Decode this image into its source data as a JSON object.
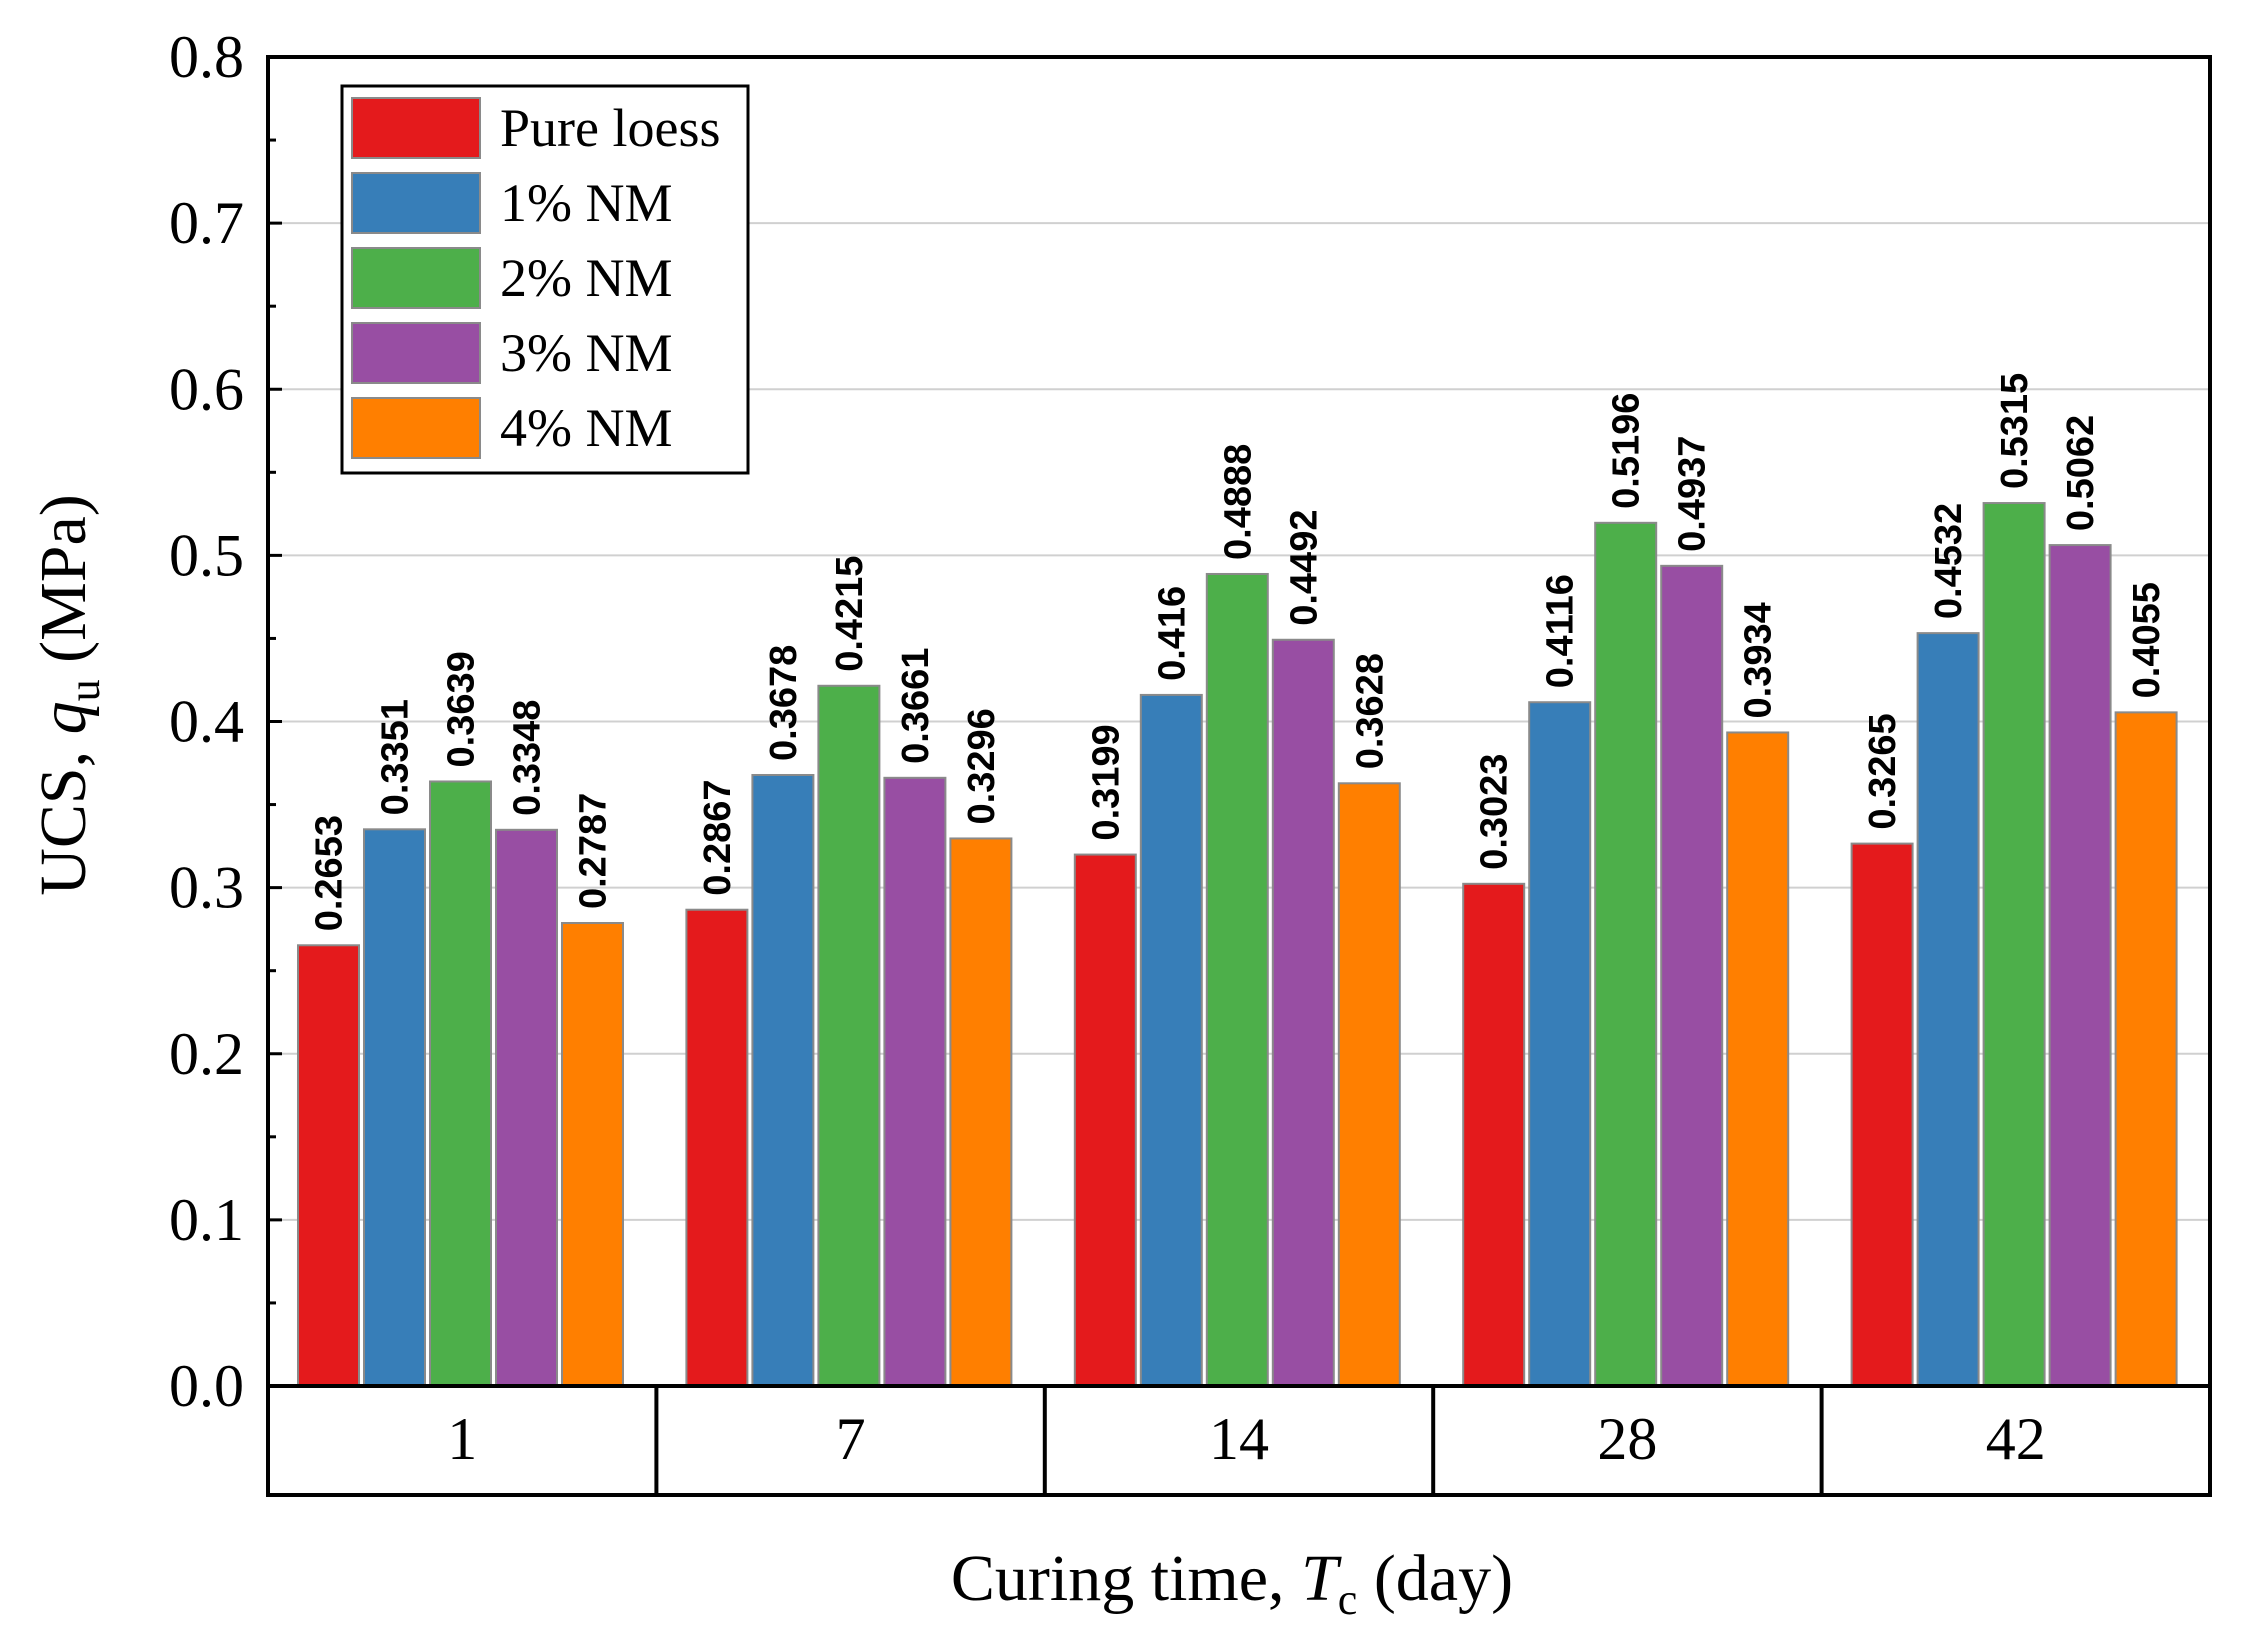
{
  "chart_data": {
    "type": "bar",
    "title": "",
    "xlabel": {
      "prefix": "Curing time, ",
      "var": "T",
      "sub": "c",
      "suffix": " (day)"
    },
    "ylabel": {
      "prefix": "UCS, ",
      "var": "q",
      "sub": "u",
      "suffix": " (MPa)"
    },
    "categories": [
      "1",
      "7",
      "14",
      "28",
      "42"
    ],
    "ylim": [
      0.0,
      0.8
    ],
    "yticks": [
      "0.0",
      "0.1",
      "0.2",
      "0.3",
      "0.4",
      "0.5",
      "0.6",
      "0.7",
      "0.8"
    ],
    "grid": true,
    "legend_position": "top-left",
    "series": [
      {
        "name": "Pure loess",
        "color": "#e41a1c",
        "values": [
          0.2653,
          0.2867,
          0.3199,
          0.3023,
          0.3265
        ],
        "labels": [
          "0.2653",
          "0.2867",
          "0.3199",
          "0.3023",
          "0.3265"
        ]
      },
      {
        "name": "1% NM",
        "color": "#377eb8",
        "values": [
          0.3351,
          0.3678,
          0.416,
          0.4116,
          0.4532
        ],
        "labels": [
          "0.3351",
          "0.3678",
          "0.416",
          "0.4116",
          "0.4532"
        ]
      },
      {
        "name": "2% NM",
        "color": "#4daf4a",
        "values": [
          0.3639,
          0.4215,
          0.4888,
          0.5196,
          0.5315
        ],
        "labels": [
          "0.3639",
          "0.4215",
          "0.4888",
          "0.5196",
          "0.5315"
        ]
      },
      {
        "name": "3% NM",
        "color": "#984ea3",
        "values": [
          0.3348,
          0.3661,
          0.4492,
          0.4937,
          0.5062
        ],
        "labels": [
          "0.3348",
          "0.3661",
          "0.4492",
          "0.4937",
          "0.5062"
        ]
      },
      {
        "name": "4% NM",
        "color": "#ff7f00",
        "values": [
          0.2787,
          0.3296,
          0.3628,
          0.3934,
          0.4055
        ],
        "labels": [
          "0.2787",
          "0.3296",
          "0.3628",
          "0.3934",
          "0.4055"
        ]
      }
    ]
  }
}
